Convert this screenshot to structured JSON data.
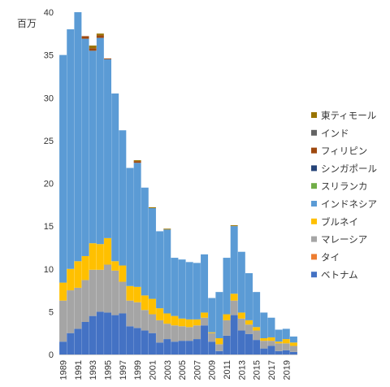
{
  "chart_data": {
    "type": "bar",
    "stacked": true,
    "ylabel": "百万",
    "ylim": [
      0,
      40
    ],
    "yticks": [
      0,
      5,
      10,
      15,
      20,
      25,
      30,
      35,
      40
    ],
    "grid": false,
    "legend_position": "right",
    "categories": [
      "1989",
      "1990",
      "1991",
      "1992",
      "1993",
      "1994",
      "1995",
      "1996",
      "1997",
      "1998",
      "1999",
      "2000",
      "2001",
      "2002",
      "2003",
      "2004",
      "2005",
      "2006",
      "2007",
      "2008",
      "2009",
      "2010",
      "2011",
      "2012",
      "2013",
      "2014",
      "2015",
      "2016",
      "2017",
      "2018",
      "2019",
      "2020"
    ],
    "x_tick_labels": [
      "1989",
      "1991",
      "1993",
      "1995",
      "1997",
      "1999",
      "2001",
      "2003",
      "2005",
      "2007",
      "2009",
      "2011",
      "2013",
      "2015",
      "2017",
      "2019"
    ],
    "series": [
      {
        "name": "ベトナム",
        "color": "#4472c4",
        "values": [
          1.5,
          2.5,
          3.0,
          3.8,
          4.5,
          5.0,
          4.9,
          4.6,
          4.8,
          3.3,
          3.1,
          2.8,
          2.5,
          1.4,
          1.8,
          1.5,
          1.6,
          1.6,
          1.8,
          3.4,
          1.5,
          0.4,
          2.2,
          4.6,
          2.8,
          2.4,
          1.7,
          0.7,
          1.0,
          0.4,
          0.5,
          0.3
        ]
      },
      {
        "name": "タイ",
        "color": "#ed7d31",
        "values": [
          0,
          0,
          0,
          0,
          0,
          0,
          0,
          0,
          0,
          0,
          0,
          0,
          0,
          0,
          0,
          0,
          0,
          0,
          0,
          0,
          0,
          0,
          0,
          0,
          0,
          0,
          0,
          0,
          0,
          0,
          0,
          0
        ]
      },
      {
        "name": "マレーシア",
        "color": "#a5a5a5",
        "values": [
          4.8,
          5.0,
          4.8,
          4.9,
          5.4,
          4.9,
          5.6,
          5.2,
          3.7,
          3.0,
          3.0,
          2.4,
          2.2,
          2.6,
          1.8,
          1.9,
          1.7,
          1.6,
          1.6,
          0.9,
          1.0,
          0.8,
          1.8,
          1.7,
          1.4,
          1.1,
          1.1,
          0.9,
          0.6,
          0.9,
          0.8,
          0.7
        ]
      },
      {
        "name": "ブルネイ",
        "color": "#ffc000",
        "values": [
          2.1,
          2.5,
          3.1,
          2.8,
          3.1,
          3.0,
          3.1,
          1.1,
          1.9,
          1.7,
          1.8,
          1.7,
          1.8,
          1.4,
          1.2,
          1.1,
          0.9,
          0.9,
          0.7,
          0.6,
          0.1,
          0.7,
          0.7,
          0.8,
          0.7,
          0.5,
          0.4,
          0.3,
          0.4,
          0.2,
          0.5,
          0.4
        ]
      },
      {
        "name": "インドネシア",
        "color": "#5b9bd5",
        "values": [
          26.6,
          28.0,
          29.1,
          25.4,
          22.5,
          24.1,
          20.9,
          19.6,
          15.8,
          13.8,
          14.5,
          12.6,
          10.6,
          9.0,
          9.8,
          6.8,
          6.9,
          6.7,
          6.6,
          6.8,
          4.0,
          5.4,
          6.6,
          7.9,
          7.1,
          5.5,
          4.1,
          3.0,
          2.3,
          1.4,
          1.2,
          0.7
        ]
      },
      {
        "name": "スリランカ",
        "color": "#70ad47",
        "values": [
          0,
          0,
          0,
          0,
          0,
          0,
          0,
          0,
          0,
          0,
          0,
          0,
          0,
          0,
          0,
          0,
          0,
          0,
          0,
          0,
          0,
          0,
          0,
          0,
          0,
          0,
          0,
          0,
          0,
          0,
          0,
          0
        ]
      },
      {
        "name": "シンガポール",
        "color": "#264478",
        "values": [
          0,
          0,
          0,
          0,
          0,
          0,
          0,
          0,
          0,
          0,
          0,
          0,
          0,
          0,
          0,
          0,
          0,
          0,
          0,
          0,
          0,
          0,
          0,
          0,
          0,
          0,
          0,
          0,
          0,
          0,
          0,
          0
        ]
      },
      {
        "name": "フィリピン",
        "color": "#9e480e",
        "values": [
          0,
          0,
          0,
          0.3,
          0.3,
          0.3,
          0.1,
          0,
          0,
          0,
          0.2,
          0,
          0,
          0,
          0,
          0,
          0,
          0,
          0,
          0,
          0,
          0,
          0,
          0,
          0,
          0,
          0,
          0,
          0,
          0,
          0,
          0
        ]
      },
      {
        "name": "インド",
        "color": "#636363",
        "values": [
          0,
          0,
          0,
          0,
          0,
          0,
          0,
          0,
          0,
          0,
          0,
          0,
          0,
          0,
          0,
          0,
          0,
          0,
          0,
          0,
          0,
          0,
          0,
          0,
          0,
          0,
          0,
          0,
          0,
          0,
          0,
          0
        ]
      },
      {
        "name": "東ティモール",
        "color": "#997300",
        "values": [
          0,
          0,
          0,
          0,
          0.3,
          0.2,
          0,
          0,
          0,
          0,
          0.1,
          0,
          0.1,
          0,
          0.1,
          0,
          0,
          0,
          0,
          0,
          0,
          0,
          0,
          0.1,
          0,
          0,
          0,
          0,
          0,
          0,
          0,
          0
        ]
      }
    ],
    "legend_order": [
      "東ティモール",
      "インド",
      "フィリピン",
      "シンガポール",
      "スリランカ",
      "インドネシア",
      "ブルネイ",
      "マレーシア",
      "タイ",
      "ベトナム"
    ]
  }
}
